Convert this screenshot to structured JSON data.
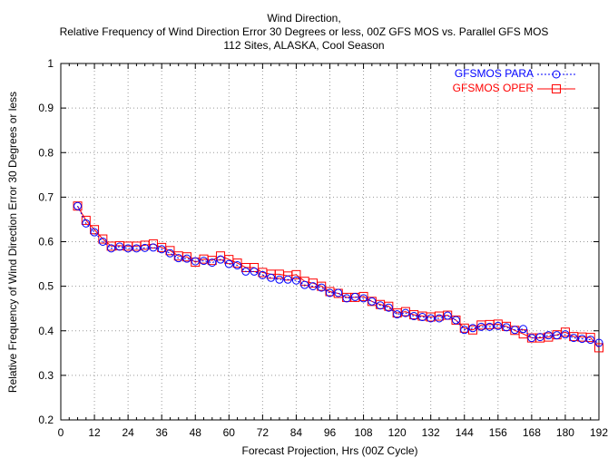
{
  "chart_data": {
    "type": "line",
    "title": "Wind Direction,",
    "subtitle": "Relative Frequency of Wind Direction Error 30 Degrees or less, 00Z GFS MOS vs. Parallel GFS MOS",
    "subtitle2": "112 Sites, ALASKA, Cool Season",
    "xlabel": "Forecast Projection, Hrs (00Z Cycle)",
    "ylabel": "Relative Frequency of Wind Direction Error 30 Degrees or less",
    "xlim": [
      0,
      192
    ],
    "ylim": [
      0.2,
      1.0
    ],
    "xticks": [
      0,
      12,
      24,
      36,
      48,
      60,
      72,
      84,
      96,
      108,
      120,
      132,
      144,
      156,
      168,
      180,
      192
    ],
    "yticks": [
      0.2,
      0.3,
      0.4,
      0.5,
      0.6,
      0.7,
      0.8,
      0.9,
      1.0
    ],
    "ytick_labels": [
      "0.2",
      "0.3",
      "0.4",
      "0.5",
      "0.6",
      "0.7",
      "0.8",
      "0.9",
      "1"
    ],
    "grid": true,
    "legend_position": "top-right",
    "x": [
      6,
      9,
      12,
      15,
      18,
      21,
      24,
      27,
      30,
      33,
      36,
      39,
      42,
      45,
      48,
      51,
      54,
      57,
      60,
      63,
      66,
      69,
      72,
      75,
      78,
      81,
      84,
      87,
      90,
      93,
      96,
      99,
      102,
      105,
      108,
      111,
      114,
      117,
      120,
      123,
      126,
      129,
      132,
      135,
      138,
      141,
      144,
      147,
      150,
      153,
      156,
      159,
      162,
      165,
      168,
      171,
      174,
      177,
      180,
      183,
      186,
      189,
      192
    ],
    "series": [
      {
        "name": "GFSMOS PARA",
        "color": "#0000ff",
        "marker": "circle",
        "line_style": "dotted",
        "values": [
          0.68,
          0.641,
          0.621,
          0.6,
          0.585,
          0.589,
          0.585,
          0.585,
          0.586,
          0.587,
          0.583,
          0.574,
          0.563,
          0.562,
          0.556,
          0.557,
          0.553,
          0.56,
          0.55,
          0.547,
          0.533,
          0.533,
          0.525,
          0.519,
          0.515,
          0.515,
          0.513,
          0.503,
          0.5,
          0.497,
          0.485,
          0.485,
          0.473,
          0.476,
          0.473,
          0.466,
          0.457,
          0.452,
          0.437,
          0.44,
          0.433,
          0.431,
          0.428,
          0.428,
          0.434,
          0.424,
          0.402,
          0.406,
          0.409,
          0.409,
          0.411,
          0.408,
          0.402,
          0.404,
          0.384,
          0.386,
          0.39,
          0.39,
          0.392,
          0.384,
          0.382,
          0.38,
          0.373
        ]
      },
      {
        "name": "GFSMOS OPER",
        "color": "#ff0000",
        "marker": "square",
        "line_style": "solid",
        "values": [
          0.68,
          0.648,
          0.627,
          0.606,
          0.59,
          0.591,
          0.59,
          0.59,
          0.592,
          0.595,
          0.587,
          0.58,
          0.568,
          0.566,
          0.554,
          0.561,
          0.558,
          0.568,
          0.56,
          0.552,
          0.542,
          0.542,
          0.531,
          0.527,
          0.527,
          0.523,
          0.526,
          0.511,
          0.507,
          0.5,
          0.488,
          0.484,
          0.475,
          0.475,
          0.477,
          0.466,
          0.459,
          0.455,
          0.44,
          0.443,
          0.436,
          0.433,
          0.431,
          0.433,
          0.435,
          0.424,
          0.406,
          0.402,
          0.413,
          0.414,
          0.415,
          0.41,
          0.401,
          0.393,
          0.384,
          0.384,
          0.386,
          0.391,
          0.397,
          0.387,
          0.386,
          0.385,
          0.362
        ]
      }
    ]
  }
}
